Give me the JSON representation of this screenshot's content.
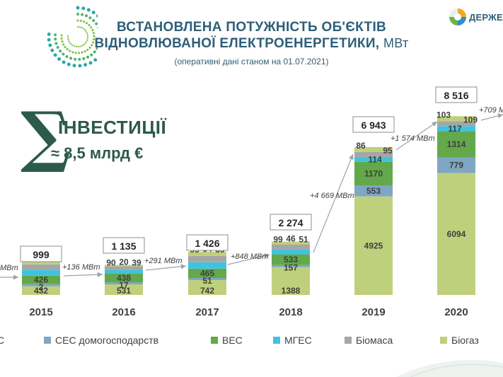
{
  "header": {
    "title_line1": "ВСТАНОВЛЕНА ПОТУЖНІСТЬ ОБ'ЄКТІВ",
    "title_line2": "ВІДНОВЛЮВАНОЇ ЕЛЕКТРОЕНЕРГЕТИКИ,",
    "title_unit": "МВт",
    "subtitle": "(оперативні дані станом на 01.07.2021)",
    "brand_text": "ДЕРЖЕН"
  },
  "investment": {
    "sigma": "∑",
    "title": "ІНВЕСТИЦІЇ",
    "value": "≈ 8,5 млрд €"
  },
  "colors": {
    "ses_household": "#7fa7c4",
    "wind": "#63a84a",
    "small_hydro": "#3fc3de",
    "biomass": "#a6a6a6",
    "biogas": "#bfd07d",
    "label_text": "#3f3f3f",
    "arrow": "#9aa3ad"
  },
  "chart_data": {
    "type": "bar",
    "stacked": true,
    "categories": [
      "2015",
      "2016",
      "2017",
      "2018",
      "2019",
      "2020"
    ],
    "series": [
      {
        "key": "bottom",
        "name": "",
        "values": [
          432,
          531,
          742,
          1388,
          4925,
          6094
        ]
      },
      {
        "key": "ses_household",
        "name": "СЕС домогосподарств",
        "values": [
          2,
          17,
          51,
          157,
          553,
          779
        ]
      },
      {
        "key": "wind",
        "name": "ВЕС",
        "values": [
          426,
          438,
          465,
          533,
          1170,
          1314
        ]
      },
      {
        "key": "small_hydro",
        "name": "МГЕС",
        "values": [
          87,
          90,
          95,
          99,
          114,
          117
        ]
      },
      {
        "key": "biomass",
        "name": "Біомаса",
        "values": [
          17,
          20,
          34,
          46,
          86,
          103
        ]
      },
      {
        "key": "biogas",
        "name": "Біогаз",
        "values": [
          35,
          39,
          39,
          51,
          95,
          109
        ]
      }
    ],
    "totals": [
      "999",
      "1 135",
      "1 426",
      "2 274",
      "6 943",
      "8 516"
    ],
    "growth_annotations": [
      {
        "text": "МВт"
      },
      {
        "text": "+136 МВт"
      },
      {
        "text": "+291 МВт"
      },
      {
        "text": "+848 МВт"
      },
      {
        "text": "+4 669 МВт"
      },
      {
        "text": "+1 574 МВт"
      },
      {
        "text": "+709 М"
      }
    ],
    "legend": [
      {
        "key": "partial",
        "label": "С"
      },
      {
        "key": "ses_household",
        "label": "СЕС домогосподарств"
      },
      {
        "key": "wind",
        "label": "ВЕС"
      },
      {
        "key": "small_hydro",
        "label": "МГЕС"
      },
      {
        "key": "biomass",
        "label": "Біомаса"
      },
      {
        "key": "biogas",
        "label": "Біогаз"
      }
    ]
  }
}
